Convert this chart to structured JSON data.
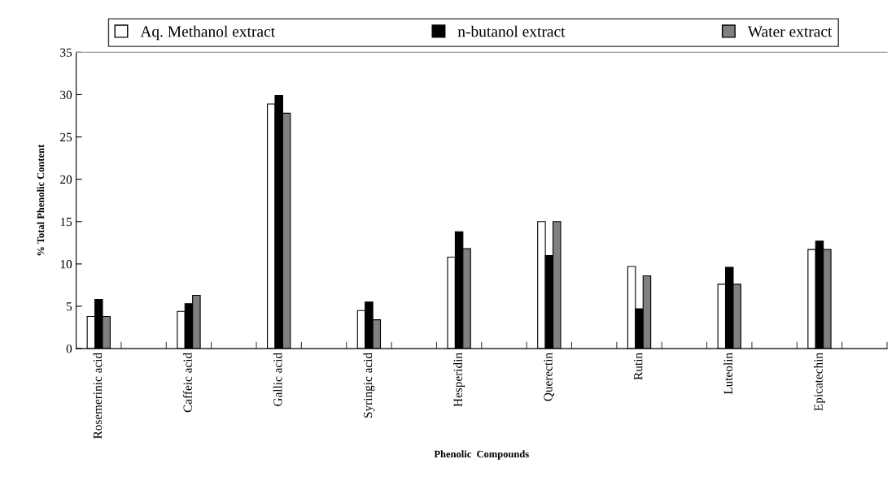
{
  "chart_data": {
    "type": "bar",
    "xlabel": "Phenolic  Compounds",
    "ylabel": "% Total Phenolic Content",
    "categories": [
      "Rosemerinic acid",
      null,
      "Caffeic acid",
      null,
      "Gallic acid",
      null,
      "Syringic acid",
      null,
      "Hesperidin",
      null,
      "Querectin",
      null,
      "Rutin",
      null,
      "Luteolin",
      null,
      "Epicatechin",
      null
    ],
    "series": [
      {
        "name": "Aq. Methanol extract",
        "color": "#ffffff",
        "values": [
          3.8,
          null,
          4.4,
          null,
          28.9,
          null,
          4.5,
          null,
          10.8,
          null,
          15.0,
          null,
          9.7,
          null,
          7.6,
          null,
          11.7,
          null
        ]
      },
      {
        "name": "n-butanol extract",
        "color": "#000000",
        "values": [
          5.8,
          null,
          5.3,
          null,
          29.9,
          null,
          5.5,
          null,
          13.8,
          null,
          11.0,
          null,
          4.7,
          null,
          9.6,
          null,
          12.7,
          null
        ]
      },
      {
        "name": "Water extract",
        "color": "#808080",
        "values": [
          3.8,
          null,
          6.3,
          null,
          27.8,
          null,
          3.4,
          null,
          11.8,
          null,
          15.0,
          null,
          8.6,
          null,
          7.6,
          null,
          11.7,
          null
        ]
      }
    ],
    "ylim": [
      0,
      35
    ],
    "yticks": [
      0,
      5,
      10,
      15,
      20,
      25,
      30,
      35
    ],
    "grid": false,
    "legend": "top"
  }
}
